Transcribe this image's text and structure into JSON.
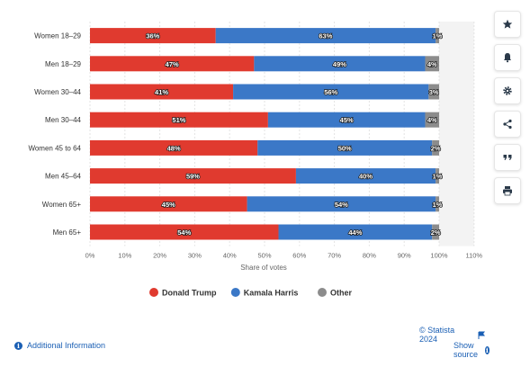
{
  "chart_data": {
    "type": "bar",
    "orientation": "horizontal",
    "stacked": true,
    "categories": [
      "Women 18-29",
      "Men 18-29",
      "Women 30-44",
      "Men 30-44",
      "Women 45 to 64",
      "Men 45-64",
      "Women 65+",
      "Men 65+"
    ],
    "series": [
      {
        "name": "Donald Trump",
        "color": "#e03a2f",
        "values": [
          36,
          47,
          41,
          51,
          48,
          59,
          45,
          54
        ]
      },
      {
        "name": "Kamala Harris",
        "color": "#3b78c7",
        "values": [
          63,
          49,
          56,
          45,
          50,
          40,
          54,
          44
        ]
      },
      {
        "name": "Other",
        "color": "#8c8c8c",
        "values": [
          1,
          4,
          3,
          4,
          2,
          1,
          1,
          2
        ]
      }
    ],
    "xlabel": "Share of votes",
    "xlim": [
      0,
      110
    ],
    "xticks": [
      0,
      10,
      20,
      30,
      40,
      50,
      60,
      70,
      80,
      90,
      100,
      110
    ],
    "tick_suffix": "%",
    "legend_position": "bottom",
    "grid": true
  },
  "footer": {
    "additional_info": "Additional Information",
    "copyright": "© Statista 2024",
    "show_source": "Show source"
  },
  "sidebar_icons": [
    "star-icon",
    "bell-icon",
    "gear-icon",
    "share-icon",
    "quote-icon",
    "print-icon"
  ]
}
